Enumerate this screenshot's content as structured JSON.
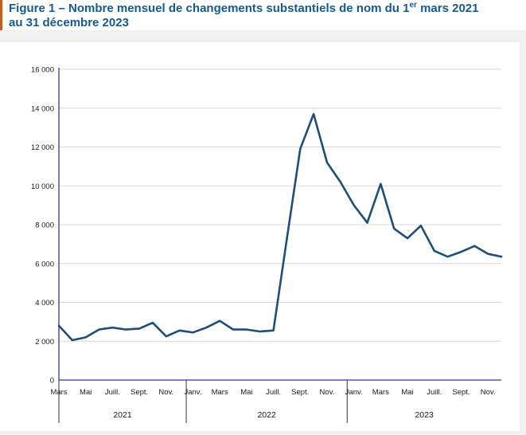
{
  "page": {
    "background": "#f0f0f0",
    "card_background": "#ffffff",
    "accent_bar_color": "#c65d21"
  },
  "title": {
    "text_before_sup": "Figure 1 – Nombre mensuel de changements substantiels de nom du 1",
    "superscript": "er",
    "text_after_sup": " mars 2021 au 31 décembre 2023",
    "color": "#175a8c"
  },
  "chart_data": {
    "type": "line",
    "title": "Nombre mensuel de changements substantiels de nom du 1er mars 2021 au 31 décembre 2023",
    "x": [
      "Mars 2021",
      "Avr. 2021",
      "Mai 2021",
      "Juin 2021",
      "Juill. 2021",
      "Août 2021",
      "Sept. 2021",
      "Oct. 2021",
      "Nov. 2021",
      "Déc. 2021",
      "Janv. 2022",
      "Févr. 2022",
      "Mars 2022",
      "Avr. 2022",
      "Mai 2022",
      "Juin 2022",
      "Juill. 2022",
      "Août 2022",
      "Sept. 2022",
      "Oct. 2022",
      "Nov. 2022",
      "Déc. 2022",
      "Janv. 2023",
      "Févr. 2023",
      "Mars 2023",
      "Avr. 2023",
      "Mai 2023",
      "Juin 2023",
      "Juill. 2023",
      "Août 2023",
      "Sept. 2023",
      "Oct. 2023",
      "Nov. 2023",
      "Déc. 2023"
    ],
    "series": [
      {
        "name": "Changements substantiels de nom",
        "color": "#1f4e79",
        "values": [
          2800,
          2050,
          2200,
          2600,
          2700,
          2600,
          2650,
          2950,
          2250,
          2550,
          2450,
          2700,
          3050,
          2600,
          2600,
          2500,
          2550,
          7250,
          11900,
          13700,
          11200,
          10200,
          9000,
          8100,
          10100,
          7800,
          7300,
          7950,
          6650,
          6350,
          6600,
          6900,
          6500,
          6350
        ]
      }
    ],
    "ylim": [
      0,
      16000
    ],
    "ytick_step": 2000,
    "ytick_labels": [
      "0",
      "2 000",
      "4 000",
      "6 000",
      "8 000",
      "10 000",
      "12 000",
      "14 000",
      "16 000"
    ],
    "xtick_every": 2,
    "xtick_labels": [
      "Mars",
      "Mai",
      "Juill.",
      "Sept.",
      "Nov.",
      "Janv.",
      "Mars",
      "Mai",
      "Juill.",
      "Sept.",
      "Nov.",
      "Janv.",
      "Mars",
      "Mai",
      "Juill.",
      "Sept.",
      "Nov."
    ],
    "year_groups": [
      {
        "label": "2021",
        "start_index": 0,
        "end_index": 9
      },
      {
        "label": "2022",
        "start_index": 10,
        "end_index": 21
      },
      {
        "label": "2023",
        "start_index": 22,
        "end_index": 33
      }
    ],
    "grid": true,
    "grid_color": "#d9d9d9",
    "axis_color": "#3333aa",
    "separator_color": "#333333",
    "legend": "none",
    "xlabel": "",
    "ylabel": ""
  }
}
